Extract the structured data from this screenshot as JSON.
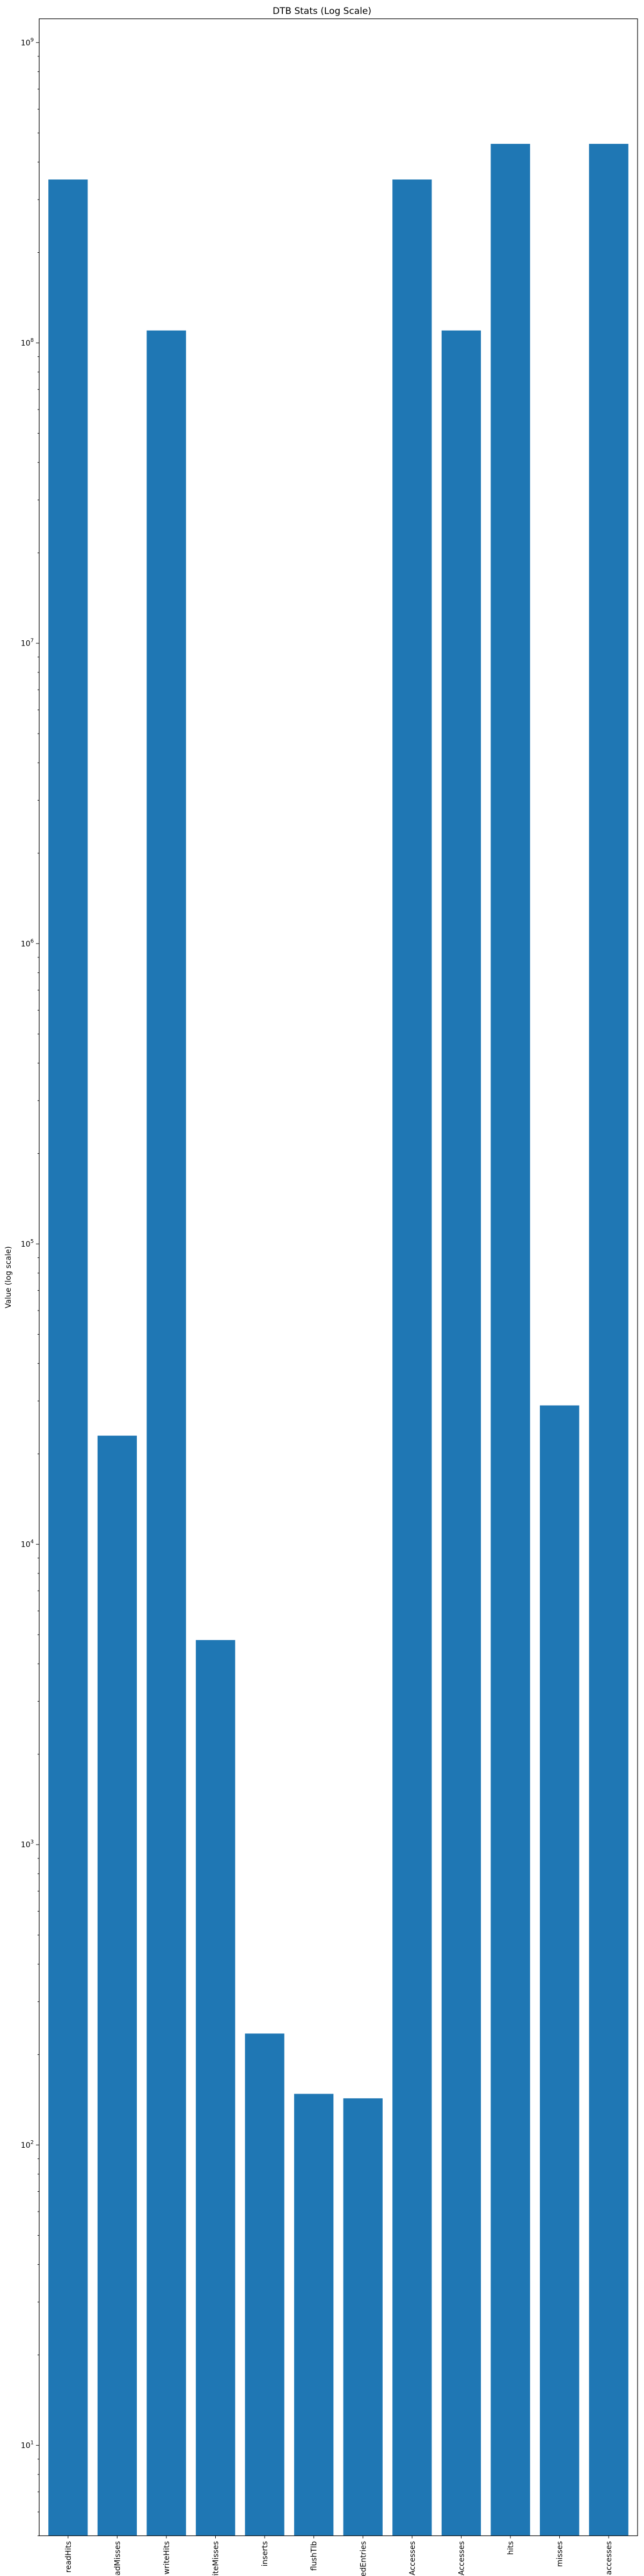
{
  "chart_data": {
    "type": "bar",
    "title": "DTB Stats (Log Scale)",
    "xlabel": "",
    "ylabel": "Value (log scale)",
    "yscale": "log",
    "ylim": [
      5,
      1200000000
    ],
    "y_ticks": [
      {
        "value": 10,
        "base": "10",
        "exp": "1"
      },
      {
        "value": 100,
        "base": "10",
        "exp": "2"
      },
      {
        "value": 1000,
        "base": "10",
        "exp": "3"
      },
      {
        "value": 10000,
        "base": "10",
        "exp": "4"
      },
      {
        "value": 100000,
        "base": "10",
        "exp": "5"
      },
      {
        "value": 1000000,
        "base": "10",
        "exp": "6"
      },
      {
        "value": 10000000,
        "base": "10",
        "exp": "7"
      },
      {
        "value": 100000000,
        "base": "10",
        "exp": "8"
      },
      {
        "value": 1000000000,
        "base": "10",
        "exp": "9"
      }
    ],
    "categories": [
      "readHits",
      "readMisses",
      "writeHits",
      "writeMisses",
      "inserts",
      "flushTlb",
      "flushedEntries",
      "readAccesses",
      "writeAccesses",
      "hits",
      "misses",
      "accesses"
    ],
    "values": [
      350000000,
      23000,
      110000000,
      4800,
      235,
      148,
      143,
      350000000,
      110000000,
      460000000,
      29000,
      460000000
    ],
    "bar_color": "#1f77b4",
    "grid": false,
    "legend": "none"
  }
}
